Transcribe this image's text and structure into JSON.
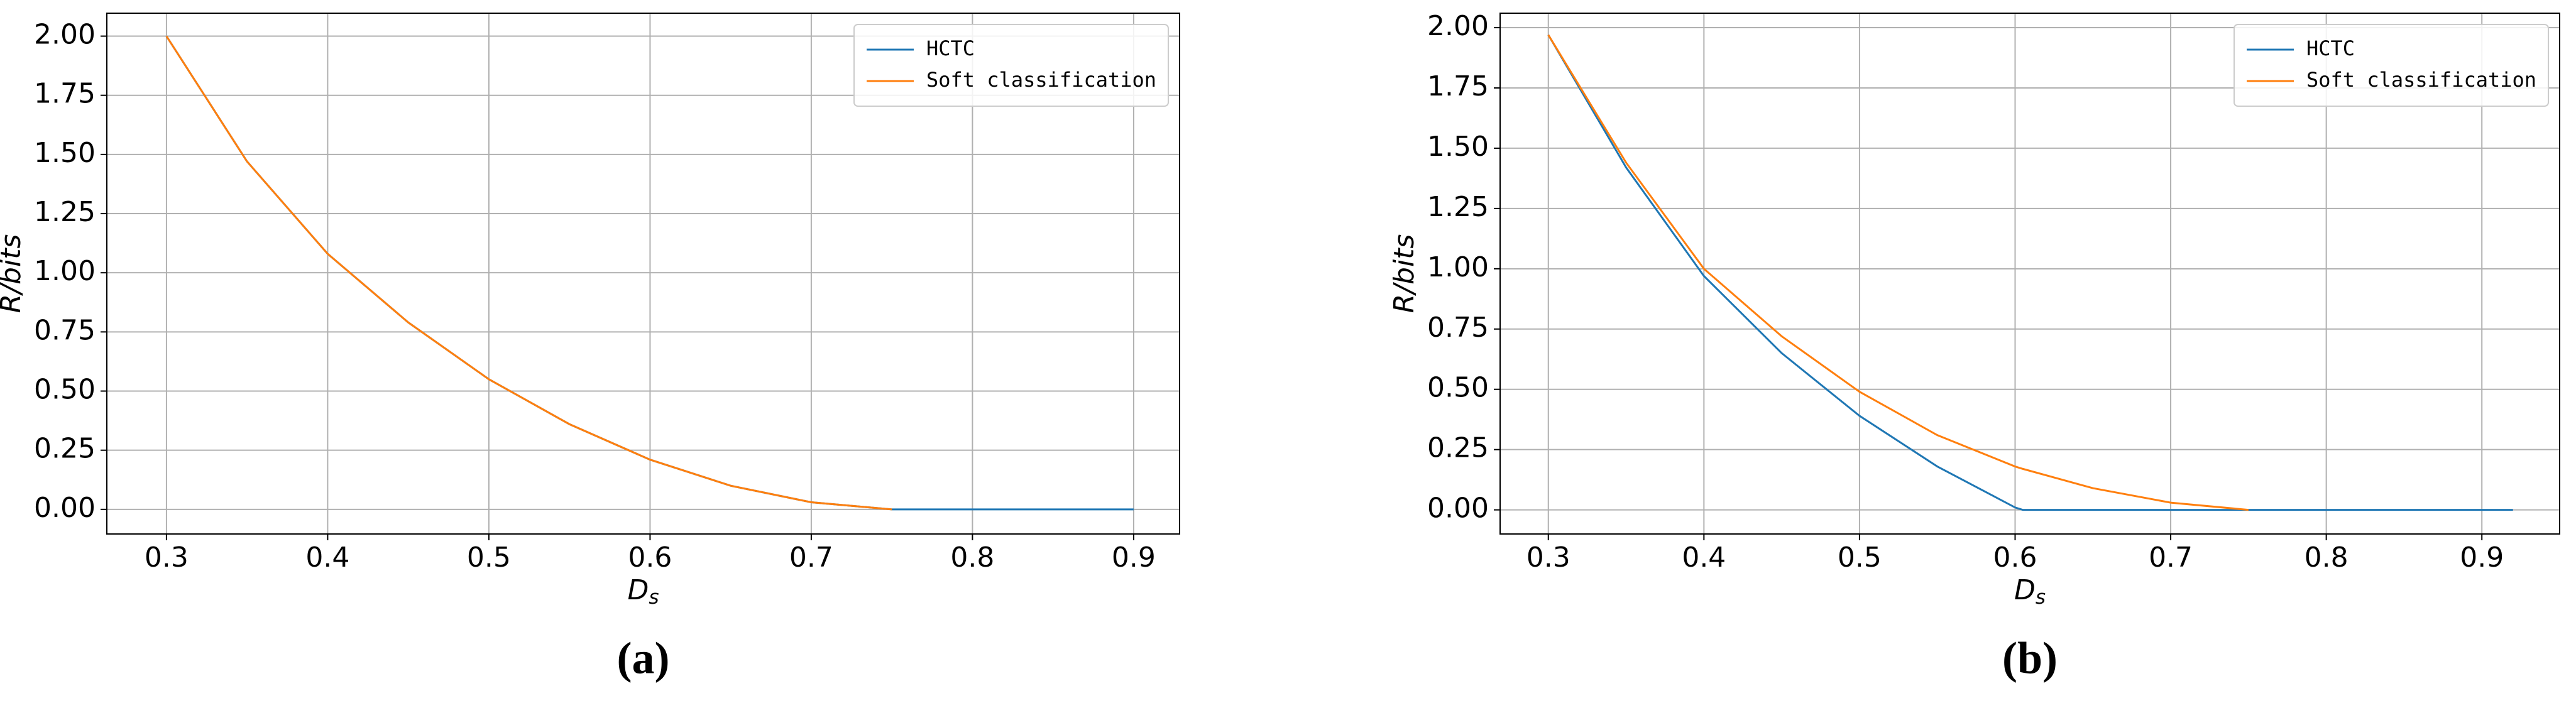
{
  "chart_data": [
    {
      "type": "line",
      "caption": "(a)",
      "x_label": {
        "main": "D",
        "sub": "s"
      },
      "y_label": "R/bits",
      "x": [
        0.3,
        0.35,
        0.4,
        0.45,
        0.5,
        0.55,
        0.6,
        0.65,
        0.7,
        0.75,
        0.8,
        0.85,
        0.9
      ],
      "series": [
        {
          "name": "HCTC",
          "color": "#1f77b4",
          "values": [
            2.0,
            1.47,
            1.08,
            0.79,
            0.55,
            0.36,
            0.21,
            0.1,
            0.03,
            0,
            0,
            0,
            0
          ]
        },
        {
          "name": "Soft classification",
          "color": "#ff7f0e",
          "values": [
            2.0,
            1.47,
            1.08,
            0.79,
            0.55,
            0.36,
            0.21,
            0.1,
            0.03,
            0,
            null,
            null,
            null
          ]
        }
      ],
      "xlim": [
        0.263,
        0.9285
      ],
      "ylim": [
        -0.104,
        2.097
      ],
      "xticks": [
        0.3,
        0.4,
        0.5,
        0.6,
        0.7,
        0.8,
        0.9
      ],
      "yticks": [
        {
          "value": 0,
          "label": "0.00"
        },
        {
          "value": 0.25,
          "label": "0.25"
        },
        {
          "value": 0.5,
          "label": "0.50"
        },
        {
          "value": 0.75,
          "label": "0.75"
        },
        {
          "value": 1,
          "label": "1.00"
        },
        {
          "value": 1.25,
          "label": "1.25"
        },
        {
          "value": 1.5,
          "label": "1.50"
        },
        {
          "value": 1.75,
          "label": "1.75"
        },
        {
          "value": 2,
          "label": "2.00"
        }
      ],
      "grid": true,
      "legend": "upper right"
    },
    {
      "type": "line",
      "caption": "(b)",
      "x_label": {
        "main": "D",
        "sub": "s"
      },
      "y_label": "R/bits",
      "x": [
        0.3,
        0.35,
        0.4,
        0.45,
        0.5,
        0.55,
        0.6,
        0.605,
        0.65,
        0.7,
        0.75,
        0.8,
        0.85,
        0.9,
        0.92
      ],
      "series": [
        {
          "name": "HCTC",
          "color": "#1f77b4",
          "values": [
            1.97,
            1.42,
            0.97,
            0.65,
            0.39,
            0.18,
            0.01,
            0,
            0,
            0,
            0,
            0,
            0,
            0,
            0
          ]
        },
        {
          "name": "Soft classification",
          "color": "#ff7f0e",
          "values": [
            1.97,
            1.44,
            1.0,
            0.72,
            0.49,
            0.31,
            0.18,
            0.17,
            0.09,
            0.03,
            0,
            null,
            null,
            null,
            null
          ]
        }
      ],
      "xlim": [
        0.269,
        0.95
      ],
      "ylim": [
        -0.1,
        2.06
      ],
      "xticks": [
        0.3,
        0.4,
        0.5,
        0.6,
        0.7,
        0.8,
        0.9
      ],
      "yticks": [
        {
          "value": 0,
          "label": "0.00"
        },
        {
          "value": 0.25,
          "label": "0.25"
        },
        {
          "value": 0.5,
          "label": "0.50"
        },
        {
          "value": 0.75,
          "label": "0.75"
        },
        {
          "value": 1,
          "label": "1.00"
        },
        {
          "value": 1.25,
          "label": "1.25"
        },
        {
          "value": 1.5,
          "label": "1.50"
        },
        {
          "value": 1.75,
          "label": "1.75"
        },
        {
          "value": 2,
          "label": "2.00"
        }
      ],
      "grid": true,
      "legend": "upper right"
    }
  ]
}
